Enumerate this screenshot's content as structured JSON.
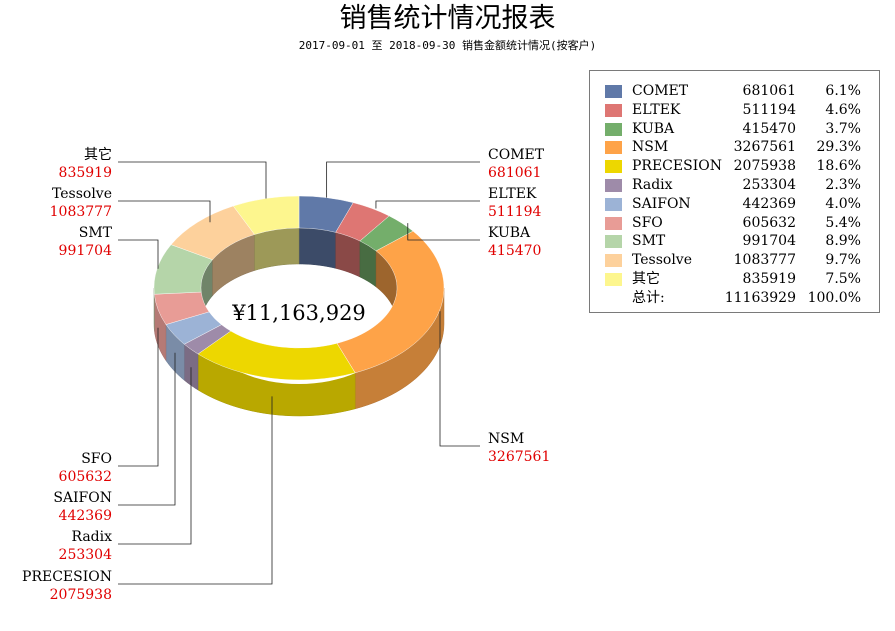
{
  "title": "销售统计情况报表",
  "subtitle": "2017-09-01 至 2018-09-30  销售金额统计情况(按客户)",
  "chart_data": {
    "type": "pie",
    "title": "销售统计情况报表",
    "subtitle": "2017-09-01 至 2018-09-30  销售金额统计情况(按客户)",
    "center_label": "¥11,163,929",
    "legend_position": "right",
    "slices": [
      {
        "name": "COMET",
        "value": 681061,
        "percent": "6.1%",
        "color": "#6079a8"
      },
      {
        "name": "ELTEK",
        "value": 511194,
        "percent": "4.6%",
        "color": "#de7673"
      },
      {
        "name": "KUBA",
        "value": 415470,
        "percent": "3.7%",
        "color": "#74ae6b"
      },
      {
        "name": "NSM",
        "value": 3267561,
        "percent": "29.3%",
        "color": "#fea348"
      },
      {
        "name": "PRECESION",
        "value": 2075938,
        "percent": "18.6%",
        "color": "#edd700"
      },
      {
        "name": "Radix",
        "value": 253304,
        "percent": "2.3%",
        "color": "#9e8ba9"
      },
      {
        "name": "SAIFON",
        "value": 442369,
        "percent": "4.0%",
        "color": "#9cb3d6"
      },
      {
        "name": "SFO",
        "value": 605632,
        "percent": "5.4%",
        "color": "#e89c96"
      },
      {
        "name": "SMT",
        "value": 991704,
        "percent": "8.9%",
        "color": "#b5d5a9"
      },
      {
        "name": "Tessolve",
        "value": 1083777,
        "percent": "9.7%",
        "color": "#fdd19c"
      },
      {
        "name": "其它",
        "value": 835919,
        "percent": "7.5%",
        "color": "#fdf68e"
      }
    ],
    "total": {
      "label": "总计:",
      "value": 11163929,
      "percent": "100.0%"
    }
  }
}
